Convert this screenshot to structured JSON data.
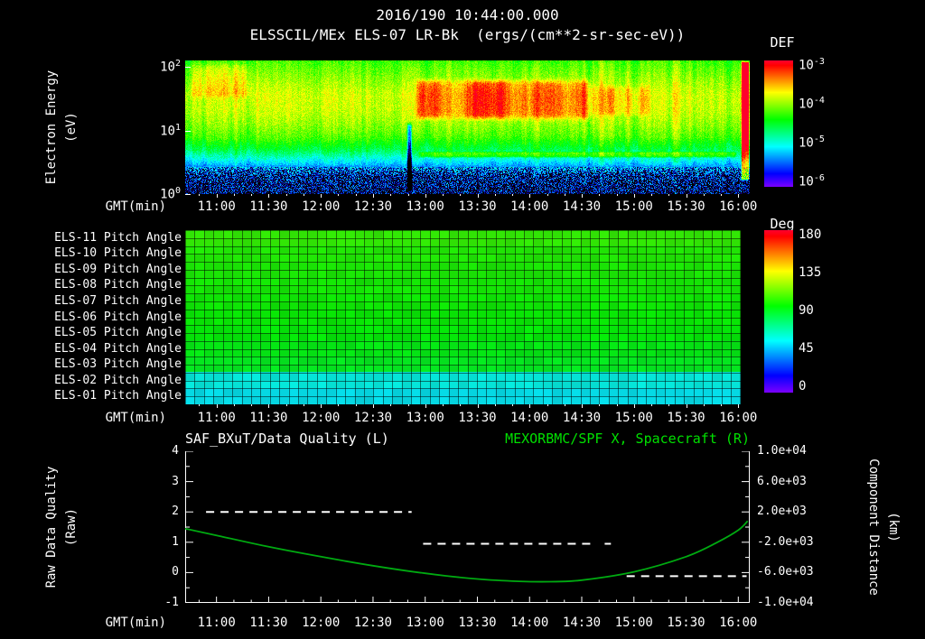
{
  "colors": {
    "background": "#000000",
    "foreground": "#ffffff",
    "accent_green": "#00e000"
  },
  "header": {
    "datetime": "2016/190 10:44:00.000",
    "instrument_title": "ELSSCIL/MEx ELS-07 LR-Bk  (ergs/(cm**2-sr-sec-eV))"
  },
  "axes": {
    "x_label": "GMT(min)",
    "x_domain_hours": [
      10.7,
      16.11
    ],
    "x_minor_step_hours": 0.1666667,
    "x_major_ticks": [
      {
        "t": 11.0,
        "label": "11:00"
      },
      {
        "t": 11.5,
        "label": "11:30"
      },
      {
        "t": 12.0,
        "label": "12:00"
      },
      {
        "t": 12.5,
        "label": "12:30"
      },
      {
        "t": 13.0,
        "label": "13:00"
      },
      {
        "t": 13.5,
        "label": "13:30"
      },
      {
        "t": 14.0,
        "label": "14:00"
      },
      {
        "t": 14.5,
        "label": "14:30"
      },
      {
        "t": 15.0,
        "label": "15:00"
      },
      {
        "t": 15.5,
        "label": "15:30"
      },
      {
        "t": 16.0,
        "label": "16:00"
      }
    ]
  },
  "chart_data": [
    {
      "id": "electron-energy-spectrogram",
      "type": "heatmap",
      "title": "ELSSCIL/MEx ELS-07 LR-Bk",
      "units": "ergs/(cm**2-sr-sec-eV)",
      "ylabel_lines": [
        "Electron Energy",
        "(eV)"
      ],
      "y_scale": "log10",
      "y_domain_log10_ev": [
        0.0,
        2.1
      ],
      "y_ticks": [
        {
          "log": 2,
          "base": "10",
          "exp": "2"
        },
        {
          "log": 1,
          "base": "10",
          "exp": "1"
        },
        {
          "log": 0,
          "base": "10",
          "exp": "0"
        }
      ],
      "colorbar": {
        "label": "DEF",
        "range_log10_flux": [
          -6,
          -3
        ],
        "ticks": [
          {
            "base": "10",
            "exp": "-3"
          },
          {
            "base": "10",
            "exp": "-4"
          },
          {
            "base": "10",
            "exp": "-5"
          },
          {
            "base": "10",
            "exp": "-6"
          }
        ]
      },
      "flux_profile_by_log_energy": [
        [
          0.0,
          0.06
        ],
        [
          0.3,
          0.11
        ],
        [
          0.5,
          0.3
        ],
        [
          0.7,
          0.48
        ],
        [
          0.9,
          0.6
        ],
        [
          1.1,
          0.66
        ],
        [
          1.3,
          0.7
        ],
        [
          1.55,
          0.71
        ],
        [
          1.75,
          0.67
        ],
        [
          1.95,
          0.62
        ],
        [
          2.1,
          0.58
        ]
      ],
      "events": [
        {
          "name": "afternoon-enhancement-main",
          "t": [
            12.88,
            14.62
          ],
          "log_e": [
            1.12,
            1.85
          ],
          "dv": 0.18,
          "soft_t": 0.1,
          "soft_e": 0.14,
          "patchy": true
        },
        {
          "name": "afternoon-enhancement-tail",
          "t": [
            14.55,
            15.18
          ],
          "log_e": [
            1.18,
            1.75
          ],
          "dv": 0.1,
          "soft_t": 0.1,
          "soft_e": 0.12,
          "patchy": true
        },
        {
          "name": "late-morning-band",
          "t": [
            10.7,
            11.38
          ],
          "log_e": [
            1.45,
            2.1
          ],
          "dv": 0.09,
          "soft_t": 0.12,
          "soft_e": 0.15
        },
        {
          "name": "low-energy-trace",
          "t": [
            12.92,
            16.0
          ],
          "log_e": [
            0.56,
            0.68
          ],
          "dv": 0.17,
          "soft_t": 0.05,
          "soft_e": 0.04
        },
        {
          "name": "mid-time-gap",
          "t": [
            12.82,
            12.88
          ],
          "log_e": [
            0.0,
            1.15
          ],
          "dv": -0.4,
          "soft_t": 0.02,
          "soft_e": 0.1
        },
        {
          "name": "end-saturation",
          "t": [
            16.025,
            16.11
          ],
          "log_e": [
            0.2,
            2.1
          ],
          "dv": 0.55,
          "soft_t": 0.012,
          "soft_e": 0.05
        }
      ]
    },
    {
      "id": "pitch-angle-panel",
      "type": "heatmap",
      "rows": [
        {
          "label": "ELS-11 Pitch Angle",
          "mean_deg": 104
        },
        {
          "label": "ELS-10 Pitch Angle",
          "mean_deg": 101
        },
        {
          "label": "ELS-09 Pitch Angle",
          "mean_deg": 100
        },
        {
          "label": "ELS-08 Pitch Angle",
          "mean_deg": 99
        },
        {
          "label": "ELS-07 Pitch Angle",
          "mean_deg": 98
        },
        {
          "label": "ELS-06 Pitch Angle",
          "mean_deg": 97
        },
        {
          "label": "ELS-05 Pitch Angle",
          "mean_deg": 96
        },
        {
          "label": "ELS-04 Pitch Angle",
          "mean_deg": 94
        },
        {
          "label": "ELS-03 Pitch Angle",
          "mean_deg": 92
        },
        {
          "label": "ELS-02 Pitch Angle",
          "mean_deg": 60
        },
        {
          "label": "ELS-01 Pitch Angle",
          "mean_deg": 56
        }
      ],
      "data_end_hours": 16.02,
      "colorbar": {
        "label": "Deg",
        "range_deg": [
          0,
          180
        ],
        "ticks": [
          "180",
          "135",
          "90",
          "45",
          "0"
        ]
      }
    },
    {
      "id": "quality-and-distance",
      "type": "line",
      "title_left": "SAF_BXuT/Data Quality (L)",
      "title_right": "MEXORBMC/SPF X, Spacecraft (R)",
      "title_right_color": "#00e000",
      "left_axis": {
        "label_lines": [
          "Raw Data Quality",
          "(Raw)"
        ],
        "domain": [
          -1,
          4
        ],
        "ticks": [
          "4",
          "3",
          "2",
          "1",
          "0",
          "-1"
        ]
      },
      "right_axis": {
        "label_lines": [
          "Component Distance",
          "(km)"
        ],
        "domain": [
          -10000,
          10000
        ],
        "ticks": [
          "1.0e+04",
          "6.0e+03",
          "2.0e+03",
          "-2.0e+03",
          "-6.0e+03",
          "-1.0e+04"
        ]
      },
      "series": [
        {
          "name": "SAF_BXuT/Data Quality",
          "axis": "left",
          "style": "dashed",
          "color": "#ffffff",
          "segments": [
            {
              "y": 2.0,
              "t": [
                10.9,
                12.87
              ]
            },
            {
              "y": 0.95,
              "t": [
                12.98,
                14.6
              ]
            },
            {
              "y": 0.95,
              "t": [
                14.72,
                14.78
              ]
            },
            {
              "y": -0.12,
              "t": [
                14.93,
                16.08
              ]
            }
          ]
        },
        {
          "name": "MEXORBMC/SPF X Spacecraft",
          "axis": "right",
          "style": "solid",
          "color": "#00aa11",
          "points_t_km": [
            [
              10.7,
              -200
            ],
            [
              11.0,
              -1100
            ],
            [
              11.5,
              -2600
            ],
            [
              12.0,
              -3900
            ],
            [
              12.5,
              -5100
            ],
            [
              13.0,
              -6100
            ],
            [
              13.5,
              -6850
            ],
            [
              13.9,
              -7150
            ],
            [
              14.2,
              -7200
            ],
            [
              14.5,
              -7000
            ],
            [
              15.0,
              -5900
            ],
            [
              15.5,
              -3900
            ],
            [
              15.8,
              -2000
            ],
            [
              16.0,
              -400
            ],
            [
              16.09,
              800
            ]
          ]
        }
      ]
    }
  ]
}
